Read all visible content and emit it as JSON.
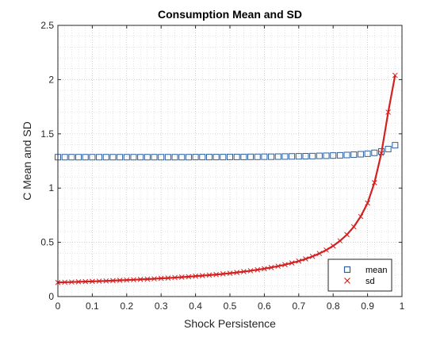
{
  "chart_data": {
    "type": "line",
    "title": "Consumption Mean and SD",
    "xlabel": "Shock Persistence",
    "ylabel": "C Mean and SD",
    "xlim": [
      0,
      1
    ],
    "ylim": [
      0,
      2.5
    ],
    "xticks": [
      "0",
      "0.1",
      "0.2",
      "0.3",
      "0.4",
      "0.5",
      "0.6",
      "0.7",
      "0.8",
      "0.9",
      "1"
    ],
    "yticks": [
      "0",
      "0.5",
      "1",
      "1.5",
      "2",
      "2.5"
    ],
    "grid": "major-and-minor-dotted",
    "legend_position": "bottom-right",
    "x": [
      0,
      0.02,
      0.04,
      0.06,
      0.08,
      0.1,
      0.12,
      0.14,
      0.16,
      0.18,
      0.2,
      0.22,
      0.24,
      0.26,
      0.28,
      0.3,
      0.32,
      0.34,
      0.36,
      0.38,
      0.4,
      0.42,
      0.44,
      0.46,
      0.48,
      0.5,
      0.52,
      0.54,
      0.56,
      0.58,
      0.6,
      0.62,
      0.64,
      0.66,
      0.68,
      0.7,
      0.72,
      0.74,
      0.76,
      0.78,
      0.8,
      0.82,
      0.84,
      0.86,
      0.88,
      0.9,
      0.92,
      0.94,
      0.96,
      0.98
    ],
    "series": [
      {
        "name": "mean",
        "color": "#2b5f9e",
        "marker": "square",
        "line": false,
        "values": [
          1.285,
          1.285,
          1.285,
          1.285,
          1.285,
          1.285,
          1.285,
          1.285,
          1.285,
          1.285,
          1.285,
          1.285,
          1.285,
          1.285,
          1.285,
          1.285,
          1.285,
          1.285,
          1.285,
          1.285,
          1.286,
          1.286,
          1.286,
          1.286,
          1.286,
          1.287,
          1.287,
          1.287,
          1.288,
          1.288,
          1.289,
          1.289,
          1.29,
          1.291,
          1.292,
          1.293,
          1.294,
          1.295,
          1.297,
          1.298,
          1.3,
          1.302,
          1.305,
          1.308,
          1.312,
          1.317,
          1.325,
          1.338,
          1.36,
          1.395
        ]
      },
      {
        "name": "sd",
        "color": "#d32121",
        "marker": "x",
        "line": true,
        "values": [
          0.13,
          0.132,
          0.134,
          0.136,
          0.138,
          0.14,
          0.142,
          0.144,
          0.147,
          0.15,
          0.152,
          0.155,
          0.158,
          0.161,
          0.164,
          0.168,
          0.171,
          0.175,
          0.179,
          0.183,
          0.188,
          0.193,
          0.198,
          0.203,
          0.209,
          0.215,
          0.222,
          0.23,
          0.238,
          0.247,
          0.257,
          0.268,
          0.28,
          0.294,
          0.31,
          0.327,
          0.347,
          0.37,
          0.397,
          0.429,
          0.467,
          0.514,
          0.571,
          0.643,
          0.738,
          0.862,
          1.05,
          1.32,
          1.7,
          2.04
        ]
      }
    ]
  }
}
